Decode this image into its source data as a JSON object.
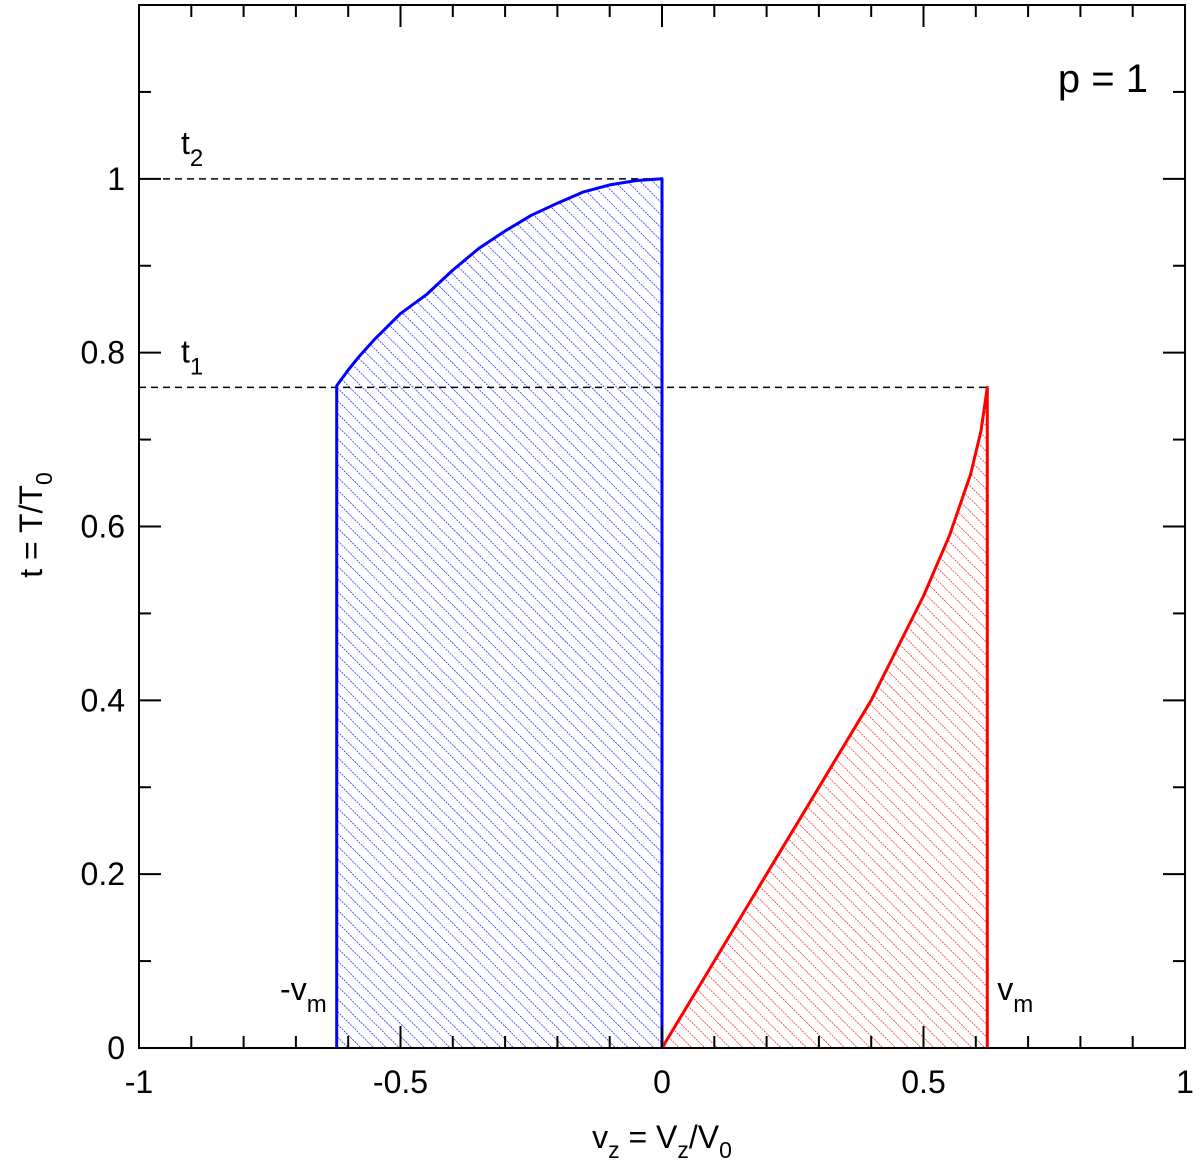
{
  "chart_data": {
    "type": "line",
    "title": "",
    "annotation": "p = 1",
    "xlim": [
      -1,
      1
    ],
    "ylim": [
      0,
      1.2
    ],
    "x_major_ticks": [
      -1,
      -0.5,
      0,
      0.5,
      1
    ],
    "x_tick_labels": [
      "-1",
      "-0.5",
      "0",
      "0.5",
      "1"
    ],
    "y_major_ticks": [
      0,
      0.2,
      0.4,
      0.6,
      0.8,
      1
    ],
    "y_tick_labels": [
      "0",
      "0.2",
      "0.4",
      "0.6",
      "0.8",
      "1"
    ],
    "xlabel": {
      "base": "v",
      "sub": "z",
      "mid": " = V",
      "sub2": "z",
      "tail": "/V",
      "sub3": "0"
    },
    "ylabel": {
      "base": "t = T/T",
      "sub": "0"
    },
    "reference_lines": [
      {
        "label_base": "t",
        "label_sub": "1",
        "y": 0.76,
        "x_start": -1,
        "x_end": 0.622
      },
      {
        "label_base": "t",
        "label_sub": "2",
        "y": 1.0,
        "x_start": -1,
        "x_end": 0.0
      }
    ],
    "markers": [
      {
        "label_base": "-v",
        "label_sub": "m",
        "x": -0.622
      },
      {
        "label_base": "v",
        "label_sub": "m",
        "x": 0.622
      }
    ],
    "series": [
      {
        "color": "#0000ff",
        "hatch": true,
        "points": [
          [
            0.0,
            0.0
          ],
          [
            0.0,
            1.0
          ],
          [
            -0.05,
            0.998
          ],
          [
            -0.1,
            0.993
          ],
          [
            -0.15,
            0.985
          ],
          [
            -0.2,
            0.972
          ],
          [
            -0.25,
            0.958
          ],
          [
            -0.3,
            0.94
          ],
          [
            -0.35,
            0.92
          ],
          [
            -0.4,
            0.895
          ],
          [
            -0.45,
            0.867
          ],
          [
            -0.5,
            0.845
          ],
          [
            -0.55,
            0.815
          ],
          [
            -0.58,
            0.795
          ],
          [
            -0.6,
            0.78
          ],
          [
            -0.622,
            0.762
          ],
          [
            -0.622,
            0.0
          ]
        ]
      },
      {
        "color": "#ff0000",
        "hatch": true,
        "points": [
          [
            0.0,
            0.0
          ],
          [
            0.1,
            0.1
          ],
          [
            0.2,
            0.2
          ],
          [
            0.3,
            0.3
          ],
          [
            0.4,
            0.4
          ],
          [
            0.5,
            0.52
          ],
          [
            0.55,
            0.59
          ],
          [
            0.59,
            0.66
          ],
          [
            0.61,
            0.71
          ],
          [
            0.622,
            0.76
          ],
          [
            0.622,
            0.0
          ]
        ]
      }
    ]
  }
}
